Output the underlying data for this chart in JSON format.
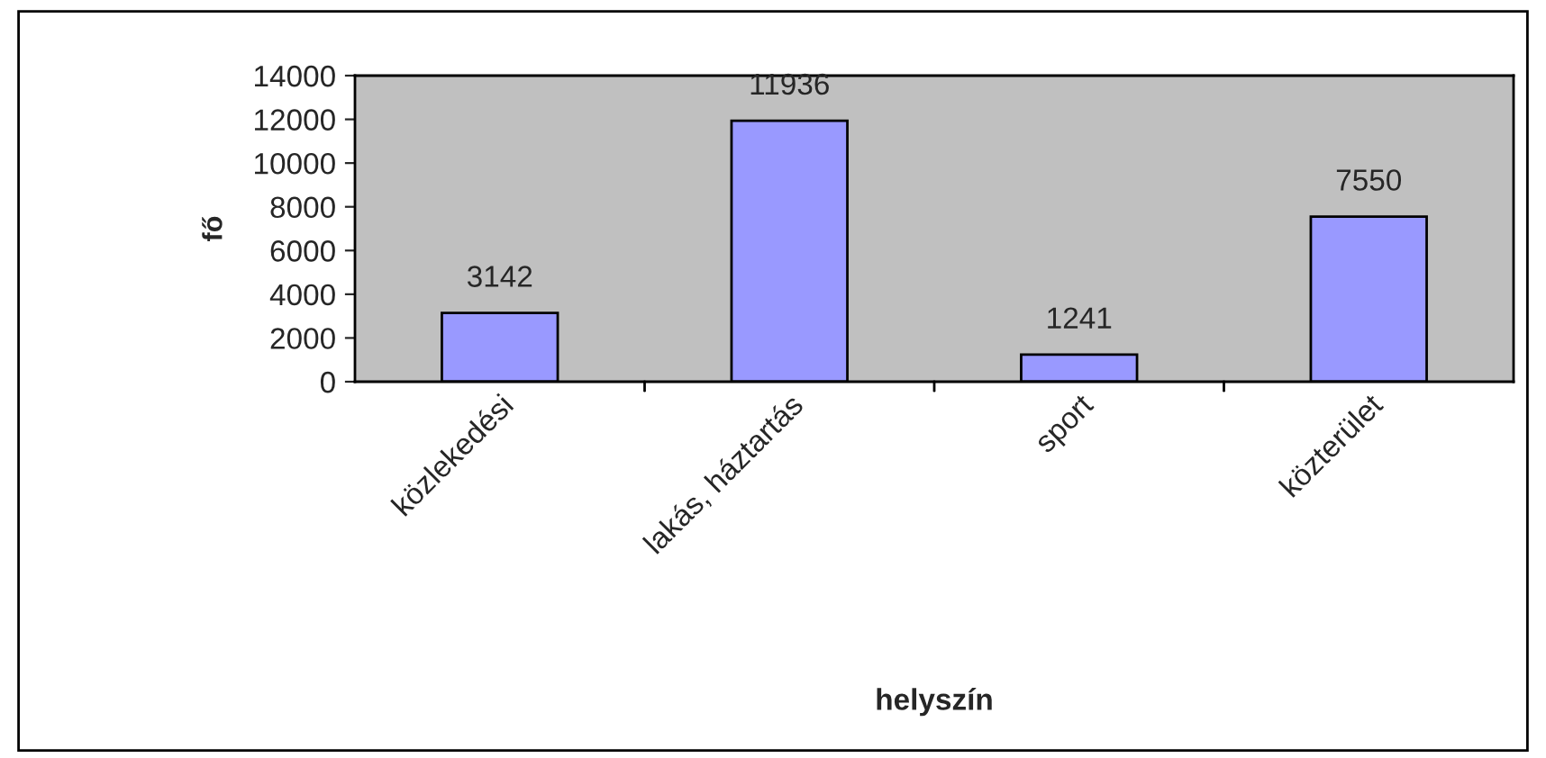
{
  "chart_data": {
    "type": "bar",
    "categories": [
      "közlekedési",
      "lakás, háztartás",
      "sport",
      "közterület"
    ],
    "values": [
      3142,
      11936,
      1241,
      7550
    ],
    "color": "#9999ff",
    "data_labels": true,
    "xlabel": "helyszín",
    "ylabel": "fő",
    "ylim": [
      0,
      14000
    ],
    "yticks": [
      0,
      2000,
      4000,
      6000,
      8000,
      10000,
      12000,
      14000
    ],
    "grid": false,
    "legend": false
  }
}
